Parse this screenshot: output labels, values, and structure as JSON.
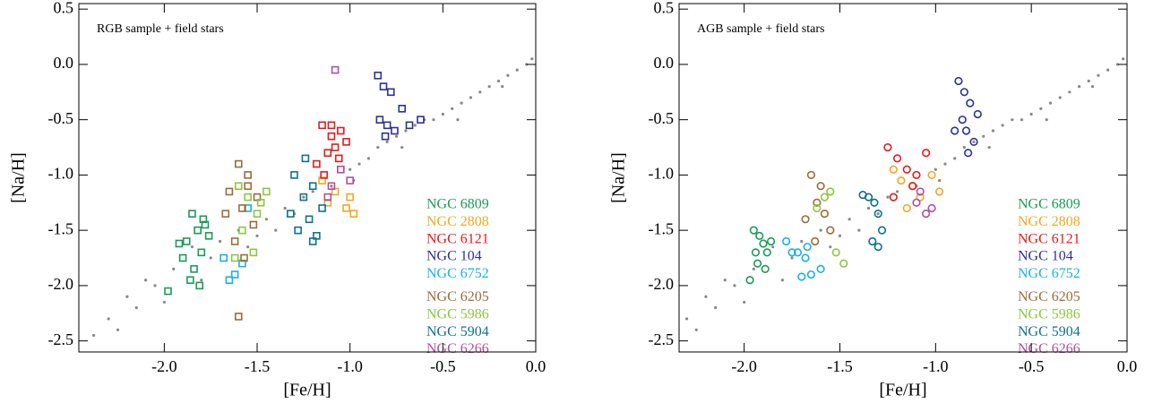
{
  "chart_data": [
    {
      "type": "scatter",
      "marker": "square",
      "annotation": "RGB sample + field stars",
      "xlabel": "[Fe/H]",
      "ylabel": "[Na/H]",
      "xlim": [
        -2.46,
        0.0
      ],
      "ylim": [
        -2.6,
        0.55
      ],
      "xticks": [
        {
          "value": -2,
          "label": "-2.0"
        },
        -1.5,
        {
          "value": -1,
          "label": "-1.0"
        },
        -0.5,
        {
          "value": 0,
          "label": "0.0"
        }
      ],
      "yticks": [
        0.5,
        {
          "value": 0,
          "label": "0.0"
        },
        -0.5,
        {
          "value": -1,
          "label": "-1.0"
        },
        -1.5,
        {
          "value": -2,
          "label": "-2.0"
        },
        -2.5
      ],
      "field": {
        "color": "#888888",
        "x": [
          -2.38,
          -2.3,
          -2.25,
          -2.2,
          -2.15,
          -2.1,
          -2.05,
          -1.95,
          -1.85,
          -1.75,
          -1.7,
          -1.6,
          -1.5,
          -1.45,
          -1.4,
          -1.35,
          -1.3,
          -1.2,
          -1.1,
          -1.0,
          -0.95,
          -0.9,
          -0.85,
          -0.8,
          -0.75,
          -0.7,
          -0.65,
          -0.6,
          -0.55,
          -0.5,
          -0.45,
          -0.4,
          -0.35,
          -0.3,
          -0.25,
          -0.2,
          -0.15,
          -0.1,
          -0.05,
          -0.02,
          -1.55,
          -1.25,
          -0.98,
          -0.72,
          -0.42,
          -0.18,
          -2.0,
          -1.8
        ],
        "y": [
          -2.45,
          -2.3,
          -2.4,
          -2.1,
          -2.2,
          -1.95,
          -2.0,
          -1.85,
          -1.65,
          -1.75,
          -1.6,
          -1.5,
          -1.55,
          -1.4,
          -1.5,
          -1.3,
          -1.35,
          -1.15,
          -1.1,
          -0.95,
          -0.9,
          -0.85,
          -0.75,
          -0.7,
          -0.65,
          -0.6,
          -0.55,
          -0.5,
          -0.5,
          -0.45,
          -0.4,
          -0.35,
          -0.3,
          -0.25,
          -0.2,
          -0.15,
          -0.1,
          -0.05,
          0.0,
          0.05,
          -1.65,
          -1.2,
          -1.05,
          -0.75,
          -0.5,
          -0.2,
          -2.15,
          -1.95
        ]
      },
      "series": [
        {
          "name": "NGC 6809",
          "color": "#1a9a5a",
          "x": [
            -1.85,
            -1.82,
            -1.88,
            -1.8,
            -1.78,
            -1.9,
            -1.84,
            -1.76,
            -1.92,
            -1.86,
            -1.81,
            -1.79,
            -1.98
          ],
          "y": [
            -1.35,
            -1.5,
            -1.6,
            -1.7,
            -1.45,
            -1.75,
            -1.85,
            -1.55,
            -1.62,
            -1.95,
            -2.0,
            -1.4,
            -2.05
          ]
        },
        {
          "name": "NGC 2808",
          "color": "#f5a623",
          "x": [
            -1.15,
            -1.08,
            -1.02,
            -1.0,
            -1.05,
            -1.12,
            -0.98
          ],
          "y": [
            -1.05,
            -1.15,
            -1.3,
            -1.2,
            -0.95,
            -1.25,
            -1.35
          ]
        },
        {
          "name": "NGC 6121",
          "color": "#e41a1c",
          "x": [
            -1.15,
            -1.1,
            -1.05,
            -1.08,
            -1.12,
            -1.18,
            -1.02,
            -1.06,
            -1.14,
            -1.1
          ],
          "y": [
            -0.55,
            -0.65,
            -0.6,
            -0.75,
            -0.8,
            -0.9,
            -0.7,
            -0.85,
            -1.0,
            -0.55
          ]
        },
        {
          "name": "NGC 104",
          "color": "#2e3192",
          "x": [
            -0.85,
            -0.82,
            -0.78,
            -0.8,
            -0.76,
            -0.84,
            -0.72,
            -0.68,
            -0.62,
            -0.81
          ],
          "y": [
            -0.1,
            -0.2,
            -0.25,
            -0.55,
            -0.6,
            -0.5,
            -0.4,
            -0.55,
            -0.5,
            -0.65
          ]
        },
        {
          "name": "NGC 6752",
          "color": "#1ab0e8",
          "x": [
            -1.68,
            -1.62,
            -1.58,
            -1.55,
            -1.65
          ],
          "y": [
            -1.75,
            -1.9,
            -1.8,
            -1.3,
            -1.95
          ]
        },
        {
          "name": "NGC 6205",
          "color": "#9c6b3a",
          "x": [
            -1.6,
            -1.55,
            -1.65,
            -1.58,
            -1.52,
            -1.62,
            -1.5,
            -1.57,
            -1.6,
            -1.67,
            -1.55
          ],
          "y": [
            -0.9,
            -1.0,
            -1.15,
            -1.3,
            -1.45,
            -1.6,
            -1.2,
            -1.75,
            -2.28,
            -1.35,
            -1.1
          ]
        },
        {
          "name": "NGC 5986",
          "color": "#8dc63f",
          "x": [
            -1.6,
            -1.55,
            -1.5,
            -1.45,
            -1.58,
            -1.52,
            -1.62,
            -1.48
          ],
          "y": [
            -1.1,
            -1.2,
            -1.35,
            -1.15,
            -1.5,
            -1.7,
            -1.75,
            -1.25
          ]
        },
        {
          "name": "NGC 5904",
          "color": "#0f6f8f",
          "x": [
            -1.3,
            -1.25,
            -1.22,
            -1.18,
            -1.2,
            -1.28,
            -1.15,
            -1.24,
            -1.32,
            -1.2
          ],
          "y": [
            -1.0,
            -1.2,
            -1.4,
            -1.55,
            -1.1,
            -1.5,
            -1.3,
            -0.85,
            -1.35,
            -1.6
          ]
        },
        {
          "name": "NGC 6266",
          "color": "#b04fa0",
          "x": [
            -1.08,
            -1.05,
            -1.1,
            -1.0,
            -1.12
          ],
          "y": [
            -0.05,
            -0.95,
            -1.1,
            -1.05,
            -1.2
          ]
        }
      ]
    },
    {
      "type": "scatter",
      "marker": "circle",
      "annotation": "AGB sample + field stars",
      "xlabel": "[Fe/H]",
      "ylabel": "[Na/H]",
      "xlim": [
        -2.34,
        0.0
      ],
      "ylim": [
        -2.6,
        0.55
      ],
      "xticks": [
        {
          "value": -2,
          "label": "-2.0"
        },
        -1.5,
        {
          "value": -1,
          "label": "-1.0"
        },
        -0.5,
        {
          "value": 0,
          "label": "0.0"
        }
      ],
      "yticks": [
        0.5,
        {
          "value": 0,
          "label": "0.0"
        },
        -0.5,
        {
          "value": -1,
          "label": "-1.0"
        },
        -1.5,
        {
          "value": -2,
          "label": "-2.0"
        },
        -2.5
      ],
      "field": {
        "color": "#888888",
        "x": [
          -2.3,
          -2.25,
          -2.2,
          -2.15,
          -2.1,
          -2.05,
          -1.95,
          -1.85,
          -1.75,
          -1.7,
          -1.6,
          -1.5,
          -1.45,
          -1.4,
          -1.35,
          -1.3,
          -1.2,
          -1.1,
          -1.0,
          -0.95,
          -0.9,
          -0.85,
          -0.8,
          -0.75,
          -0.7,
          -0.65,
          -0.6,
          -0.55,
          -0.5,
          -0.45,
          -0.4,
          -0.35,
          -0.3,
          -0.25,
          -0.2,
          -0.15,
          -0.1,
          -0.05,
          -0.02,
          -1.55,
          -1.25,
          -0.98,
          -0.72,
          -0.42,
          -0.18,
          -2.0,
          -1.8
        ],
        "y": [
          -2.3,
          -2.4,
          -2.1,
          -2.2,
          -1.95,
          -2.0,
          -1.85,
          -1.65,
          -1.75,
          -1.6,
          -1.5,
          -1.55,
          -1.4,
          -1.5,
          -1.3,
          -1.35,
          -1.15,
          -1.1,
          -0.95,
          -0.9,
          -0.85,
          -0.75,
          -0.7,
          -0.65,
          -0.6,
          -0.55,
          -0.5,
          -0.5,
          -0.45,
          -0.4,
          -0.35,
          -0.3,
          -0.25,
          -0.2,
          -0.15,
          -0.1,
          -0.05,
          0.0,
          0.05,
          -1.65,
          -1.2,
          -1.05,
          -0.75,
          -0.5,
          -0.2,
          -2.15,
          -1.95
        ]
      },
      "series": [
        {
          "name": "NGC 6809",
          "color": "#1a9a5a",
          "x": [
            -1.95,
            -1.92,
            -1.9,
            -1.88,
            -1.93,
            -1.97,
            -1.86,
            -1.89,
            -1.94
          ],
          "y": [
            -1.5,
            -1.55,
            -1.62,
            -1.7,
            -1.8,
            -1.95,
            -1.6,
            -1.85,
            -1.7
          ]
        },
        {
          "name": "NGC 2808",
          "color": "#f5a623",
          "x": [
            -1.22,
            -1.18,
            -1.12,
            -1.08,
            -1.02,
            -1.15,
            -0.98
          ],
          "y": [
            -0.95,
            -1.05,
            -1.1,
            -1.2,
            -1.0,
            -1.3,
            -1.15
          ]
        },
        {
          "name": "NGC 6121",
          "color": "#e41a1c",
          "x": [
            -1.25,
            -1.2,
            -1.15,
            -1.1,
            -1.05,
            -1.22,
            -1.12
          ],
          "y": [
            -0.75,
            -0.85,
            -0.95,
            -1.0,
            -0.8,
            -1.2,
            -1.1
          ]
        },
        {
          "name": "NGC 104",
          "color": "#2e3192",
          "x": [
            -0.88,
            -0.85,
            -0.82,
            -0.86,
            -0.84,
            -0.8,
            -0.78,
            -0.9,
            -0.83
          ],
          "y": [
            -0.15,
            -0.25,
            -0.35,
            -0.5,
            -0.6,
            -0.7,
            -0.45,
            -0.6,
            -0.8
          ]
        },
        {
          "name": "NGC 6752",
          "color": "#1ab0e8",
          "x": [
            -1.78,
            -1.72,
            -1.68,
            -1.65,
            -1.7,
            -1.6,
            -1.75,
            -1.67
          ],
          "y": [
            -1.6,
            -1.7,
            -1.75,
            -1.9,
            -1.92,
            -1.85,
            -1.7,
            -1.65
          ]
        },
        {
          "name": "NGC 6205",
          "color": "#9c6b3a",
          "x": [
            -1.65,
            -1.6,
            -1.62,
            -1.58,
            -1.68,
            -1.55,
            -1.63
          ],
          "y": [
            -1.0,
            -1.1,
            -1.25,
            -1.35,
            -1.4,
            -1.5,
            -1.6
          ]
        },
        {
          "name": "NGC 5986",
          "color": "#8dc63f",
          "x": [
            -1.62,
            -1.58,
            -1.55,
            -1.52,
            -1.48
          ],
          "y": [
            -1.3,
            -1.2,
            -1.15,
            -1.7,
            -1.8
          ]
        },
        {
          "name": "NGC 5904",
          "color": "#0f6f8f",
          "x": [
            -1.38,
            -1.35,
            -1.32,
            -1.3,
            -1.28,
            -1.33,
            -1.3
          ],
          "y": [
            -1.18,
            -1.2,
            -1.25,
            -1.35,
            -1.5,
            -1.6,
            -1.65
          ]
        },
        {
          "name": "NGC 6266",
          "color": "#b04fa0",
          "x": [
            -1.1,
            -1.05,
            -1.02,
            -1.08
          ],
          "y": [
            -1.25,
            -1.35,
            -1.3,
            -1.15
          ]
        }
      ]
    }
  ]
}
